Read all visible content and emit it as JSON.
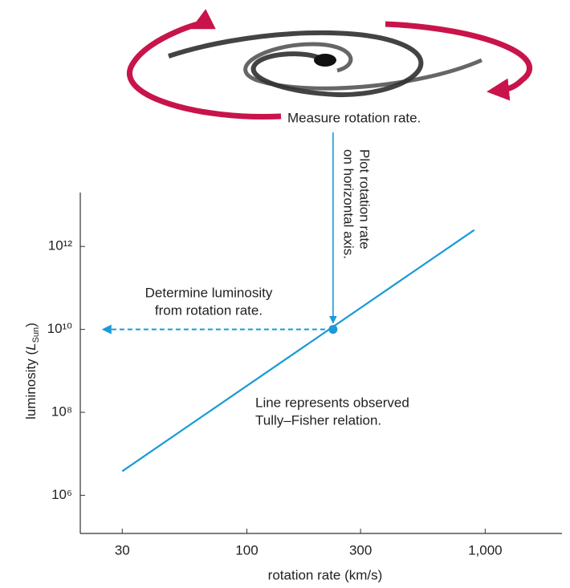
{
  "chart_data": {
    "type": "line",
    "x_label": "rotation rate (km/s)",
    "y_label": {
      "text": "luminosity (",
      "symbol": "L",
      "subscript": "Sun",
      "close": ")"
    },
    "xscale": "log",
    "yscale": "log",
    "xlim": [
      20,
      2100
    ],
    "ylim": [
      120000,
      20000000000000
    ],
    "xticks": [
      30,
      100,
      300,
      {
        "value": 1000,
        "label": "1,000"
      }
    ],
    "yticks": [
      {
        "value": 1000000,
        "label": "10⁶"
      },
      {
        "value": 100000000,
        "label": "10⁸"
      },
      {
        "value": 10000000000,
        "label": "10¹⁰"
      },
      {
        "value": 1000000000000,
        "label": "10¹²"
      }
    ],
    "series": [
      {
        "name": "Tully–Fisher relation",
        "color": "#1a9ad6",
        "x": [
          30,
          900
        ],
        "values": [
          3800000,
          2500000000000
        ]
      }
    ],
    "highlight": {
      "x": 230,
      "y": 10000000000,
      "color": "#1a9ad6"
    },
    "annotations": {
      "measure": "Measure rotation rate.",
      "plot": [
        "Plot rotation rate",
        "on horizontal axis."
      ],
      "determine": [
        "Determine luminosity",
        "from rotation rate."
      ],
      "relation": [
        "Line represents observed",
        "Tully–Fisher relation."
      ]
    }
  }
}
